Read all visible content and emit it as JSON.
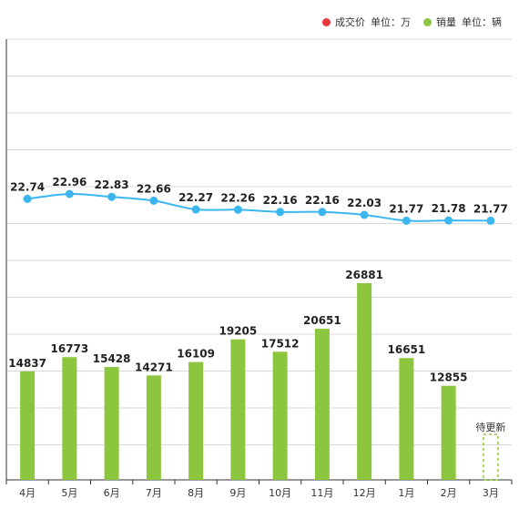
{
  "legend": {
    "price": {
      "label": "成交价",
      "unit": "单位：万",
      "color": "#e8383d"
    },
    "sales": {
      "label": "销量",
      "unit": "单位：辆",
      "color": "#8cc63f"
    }
  },
  "colors": {
    "bar": "#8cc63f",
    "line": "#3bb6ef",
    "grid": "#d9d9d9",
    "axis": "#333333"
  },
  "chart_data": {
    "type": "bar",
    "categories": [
      "4月",
      "5月",
      "6月",
      "7月",
      "8月",
      "9月",
      "10月",
      "11月",
      "12月",
      "1月",
      "2月",
      "3月"
    ],
    "grid": true,
    "legend_position": "top-right",
    "series": [
      {
        "name": "销量",
        "type": "bar",
        "values": [
          14837,
          16773,
          15428,
          14271,
          16109,
          19205,
          17512,
          20651,
          26881,
          16651,
          12855,
          null
        ]
      },
      {
        "name": "成交价",
        "type": "line",
        "values": [
          22.74,
          22.96,
          22.83,
          22.66,
          22.27,
          22.26,
          22.16,
          22.16,
          22.03,
          21.77,
          21.78,
          21.77
        ]
      }
    ],
    "annotations": [
      {
        "category": "3月",
        "text": "待更新"
      }
    ]
  }
}
